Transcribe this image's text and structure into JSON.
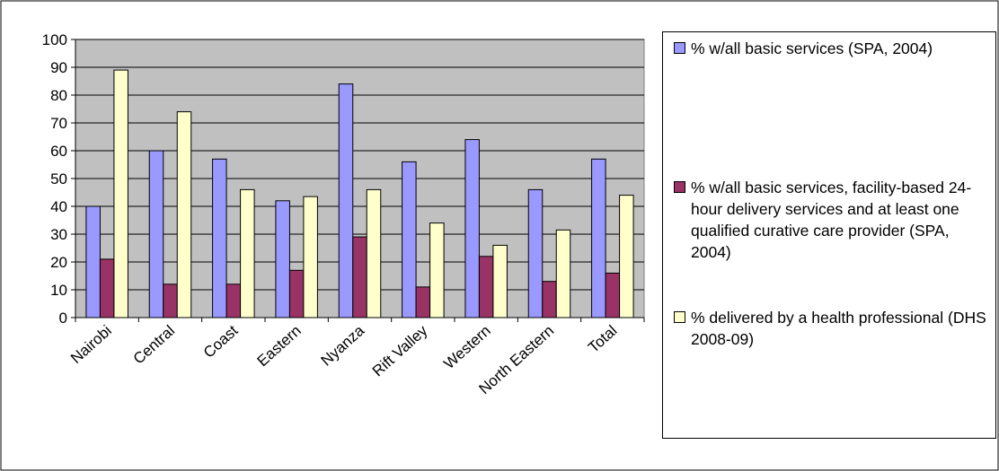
{
  "chart_data": {
    "type": "bar",
    "categories": [
      "Nairobi",
      "Central",
      "Coast",
      "Eastern",
      "Nyanza",
      "Rift Valley",
      "Western",
      "North Eastern",
      "Total"
    ],
    "series": [
      {
        "name": "% w/all basic services (SPA, 2004)",
        "color": "#9999ff",
        "values": [
          40,
          60,
          57,
          42,
          84,
          56,
          64,
          46,
          57
        ]
      },
      {
        "name": "% w/all basic services, facility-based 24-hour delivery services and at least one qualified curative care provider (SPA, 2004)",
        "color": "#993366",
        "values": [
          21,
          12,
          12,
          17,
          29,
          11,
          22,
          13,
          16
        ]
      },
      {
        "name": "% delivered by a health professional (DHS 2008-09)",
        "color": "#ffffcc",
        "values": [
          89,
          74,
          46,
          43.5,
          46,
          34,
          26,
          31.5,
          44
        ]
      }
    ],
    "ylim": [
      0,
      100
    ],
    "yticks": [
      0,
      10,
      20,
      30,
      40,
      50,
      60,
      70,
      80,
      90,
      100
    ],
    "plot_background": "#c0c0c0",
    "grid": true,
    "legend_position": "right"
  }
}
